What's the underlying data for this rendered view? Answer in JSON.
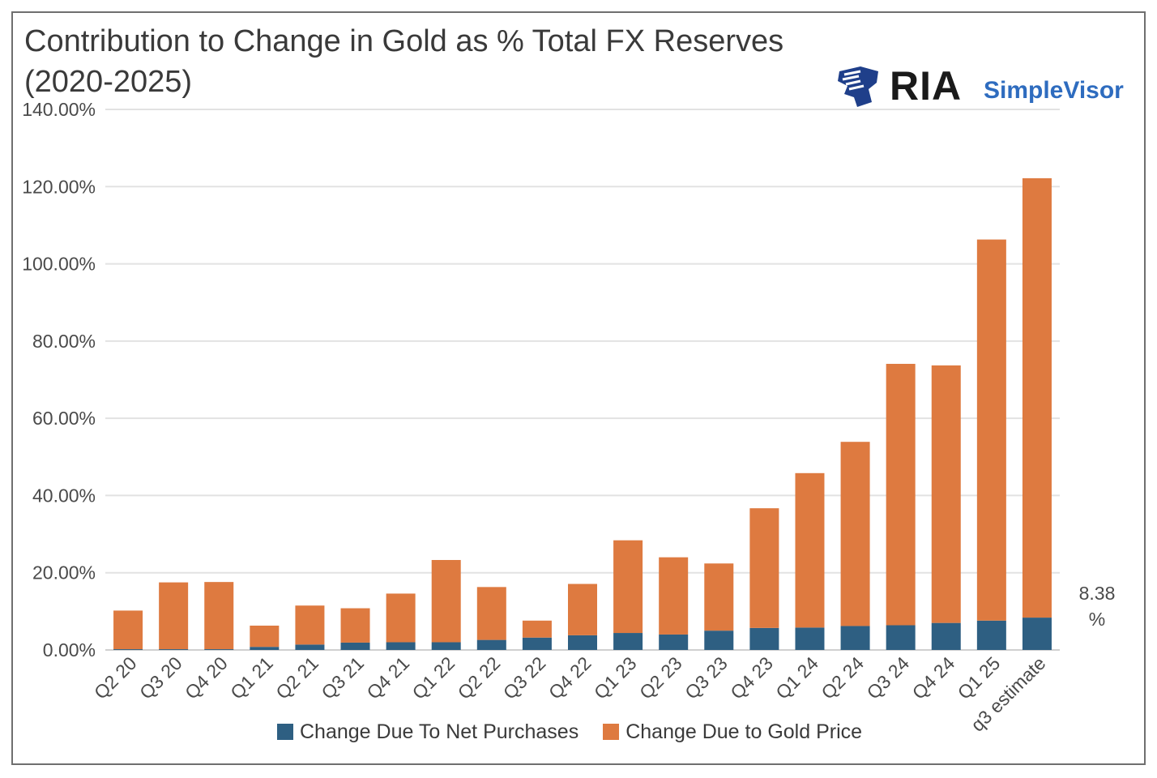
{
  "chart_data": {
    "type": "bar",
    "stacked": true,
    "title": "Contribution to Change in Gold as % Total FX Reserves (2020-2025)",
    "categories": [
      "Q2 20",
      "Q3 20",
      "Q4 20",
      "Q1 21",
      "Q2 21",
      "Q3 21",
      "Q4 21",
      "Q1 22",
      "Q2 22",
      "Q3 22",
      "Q4 22",
      "Q1 23",
      "Q2 23",
      "Q3 23",
      "Q4 23",
      "Q1 24",
      "Q2 24",
      "Q3 24",
      "Q4 24",
      "Q1 25",
      "q3 estimate"
    ],
    "series": [
      {
        "name": "Change Due To Net Purchases",
        "color": "#2e5f82",
        "values": [
          0.2,
          0.2,
          0.2,
          0.8,
          1.4,
          1.9,
          2.0,
          2.0,
          2.6,
          3.2,
          3.8,
          4.4,
          4.0,
          5.0,
          5.7,
          5.8,
          6.2,
          6.4,
          7.0,
          7.6,
          8.38
        ]
      },
      {
        "name": "Change Due to Gold Price",
        "color": "#de7a40",
        "values": [
          10.0,
          17.3,
          17.4,
          5.5,
          10.1,
          8.9,
          12.6,
          21.3,
          13.7,
          4.4,
          13.3,
          24.0,
          20.0,
          17.4,
          31.0,
          40.0,
          47.7,
          67.7,
          66.7,
          98.7,
          113.8
        ]
      }
    ],
    "ylim": [
      0,
      140
    ],
    "yticks": [
      "0.00%",
      "20.00%",
      "40.00%",
      "60.00%",
      "80.00%",
      "100.00%",
      "120.00%",
      "140.00%"
    ],
    "ytick_values": [
      0,
      20,
      40,
      60,
      80,
      100,
      120,
      140
    ],
    "annotation": {
      "line1": "8.38",
      "line2": "%"
    },
    "grid": true,
    "legend_position": "bottom"
  },
  "title_line1": "Contribution to Change in Gold as % Total FX Reserves",
  "title_line2": "(2020-2025)",
  "logo": {
    "brand": "RIA",
    "product": "SimpleVisor",
    "mark_color": "#1f3f8a"
  }
}
